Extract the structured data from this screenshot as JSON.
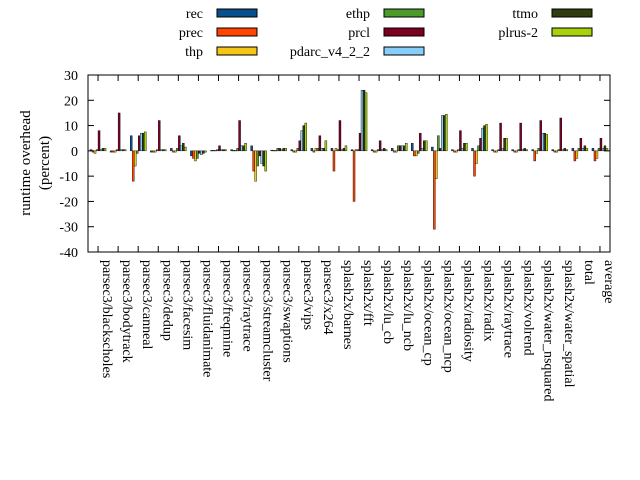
{
  "chart_data": {
    "type": "bar",
    "ylabel": "runtime overhead (percent)",
    "ylim": [
      -40,
      30
    ],
    "yticks": [
      -40,
      -30,
      -20,
      -10,
      0,
      10,
      20,
      30
    ],
    "grid": false,
    "legend_position": "top",
    "categories": [
      "parsec3/blackscholes",
      "parsec3/bodytrack",
      "parsec3/canneal",
      "parsec3/dedup",
      "parsec3/facesim",
      "parsec3/fluidanimate",
      "parsec3/freqmine",
      "parsec3/raytrace",
      "parsec3/streamcluster",
      "parsec3/swaptions",
      "parsec3/vips",
      "parsec3/x264",
      "splash2x/barnes",
      "splash2x/fft",
      "splash2x/lu_cb",
      "splash2x/lu_ncb",
      "splash2x/ocean_cp",
      "splash2x/ocean_ncp",
      "splash2x/radiosity",
      "splash2x/radix",
      "splash2x/raytrace",
      "splash2x/volrend",
      "splash2x/water_nsquared",
      "splash2x/water_spatial",
      "total",
      "average"
    ],
    "series": [
      {
        "name": "rec",
        "color": "#0b4f8a",
        "values": [
          0.5,
          -0.5,
          6,
          -0.5,
          1,
          -2,
          0.2,
          0.5,
          2,
          0.3,
          0.5,
          1,
          1,
          0.5,
          0.5,
          1,
          3,
          1.5,
          0.5,
          1,
          0.5,
          0.5,
          0.5,
          0.5,
          1,
          1
        ]
      },
      {
        "name": "prec",
        "color": "#ff4500",
        "values": [
          -0.5,
          -0.5,
          -12,
          -0.5,
          -0.5,
          -3,
          0.2,
          0.2,
          -8,
          0.2,
          -0.5,
          -0.5,
          -8,
          -20,
          -0.5,
          -0.5,
          -2,
          -31,
          -0.5,
          -10,
          -0.5,
          -0.5,
          -4,
          -0.5,
          -4,
          -4
        ]
      },
      {
        "name": "thp",
        "color": "#f5c518",
        "values": [
          -1,
          -0.5,
          -6,
          -0.5,
          -0.5,
          -4,
          0.2,
          0.2,
          -12,
          0.2,
          -0.5,
          1,
          1,
          0.5,
          -0.5,
          -0.5,
          -2,
          -11,
          -0.5,
          -5,
          -0.5,
          -0.5,
          -1,
          -0.5,
          -3,
          -3
        ]
      },
      {
        "name": "ethp",
        "color": "#4c9a2a",
        "values": [
          0.5,
          0.5,
          -1,
          0.5,
          1,
          -3,
          0.5,
          1,
          -6,
          1,
          1,
          1,
          0.5,
          0.5,
          0.5,
          2,
          -1,
          6,
          0.5,
          2,
          0.5,
          0.5,
          1,
          0.5,
          1,
          1
        ]
      },
      {
        "name": "prcl",
        "color": "#7b0021",
        "values": [
          8,
          15,
          6,
          12,
          6,
          -1,
          2,
          12,
          -2,
          1,
          4,
          6,
          12,
          7,
          4,
          2,
          7,
          1,
          8,
          5,
          11,
          11,
          12,
          13,
          5,
          5
        ]
      },
      {
        "name": "pdarc_v4_2_2",
        "color": "#87cefa",
        "values": [
          0.5,
          0.5,
          7,
          0.5,
          2,
          -1.5,
          0.5,
          2,
          -5,
          0.5,
          8,
          1,
          0.5,
          24,
          0.5,
          2,
          1,
          14,
          1,
          9,
          1,
          0.5,
          7,
          0.5,
          1,
          1
        ]
      },
      {
        "name": "ttmo",
        "color": "#2f3b10",
        "values": [
          1,
          0.5,
          7,
          0.5,
          3,
          -1,
          0.5,
          2,
          -6,
          1,
          10,
          1,
          1,
          24,
          1,
          2,
          4,
          14,
          3,
          10,
          5,
          1,
          7,
          1,
          2,
          2
        ]
      },
      {
        "name": "plrus-2",
        "color": "#a8d20a",
        "values": [
          1,
          0.5,
          7.5,
          0.5,
          1.5,
          -0.5,
          0.5,
          3,
          -8,
          1,
          11,
          4,
          2,
          23,
          0.5,
          3,
          4,
          14.5,
          3,
          10.5,
          5,
          0.5,
          6.5,
          0.5,
          1,
          1
        ]
      }
    ]
  }
}
